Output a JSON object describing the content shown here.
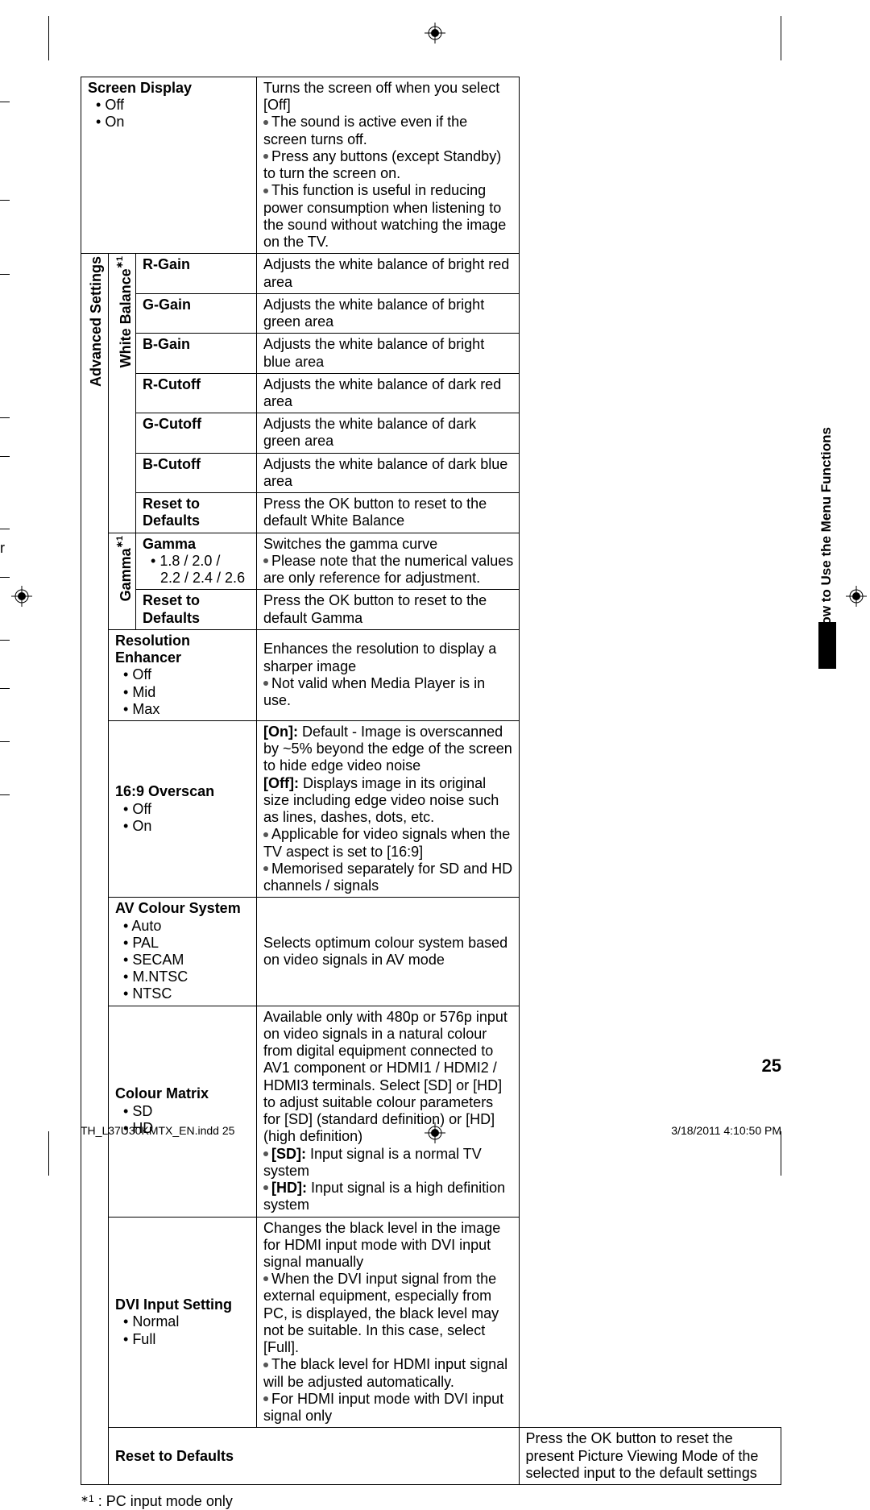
{
  "crop_color": "#000000",
  "partial_left_char": "r",
  "side_tab": "How to Use the Menu Functions",
  "footnote_mark": "∗1",
  "footnote_text": ": PC input mode only",
  "page_number": "25",
  "footer_left": "TH_L37U30KMTX_EN.indd   25",
  "footer_right": "3/18/2011   4:10:50 PM",
  "left_stub_positions": [
    26,
    148,
    240,
    418,
    466,
    556,
    616,
    694,
    754,
    820,
    886
  ],
  "rows": {
    "screen_display": {
      "label": "Screen Display",
      "options": [
        "Off",
        "On"
      ],
      "desc_lines": [
        {
          "text": "Turns the screen off when you select [Off]",
          "bullet": false
        },
        {
          "text": "The sound is active even if the screen turns off.",
          "bullet": true
        },
        {
          "text": "Press any buttons (except Standby) to turn the screen on.",
          "bullet": true
        },
        {
          "text": "This function is useful in reducing power consumption when listening to the sound without watching the image on the TV.",
          "bullet": true
        }
      ]
    },
    "adv_label": "Advanced Settings",
    "wb_label": "White Balance",
    "wb": [
      {
        "label": "R-Gain",
        "desc": "Adjusts the white balance of bright red area"
      },
      {
        "label": "G-Gain",
        "desc": "Adjusts the white balance of bright green area"
      },
      {
        "label": "B-Gain",
        "desc": "Adjusts the white balance of bright blue area"
      },
      {
        "label": "R-Cutoff",
        "desc": "Adjusts the white balance of dark red area"
      },
      {
        "label": "G-Cutoff",
        "desc": "Adjusts the white balance of dark green area"
      },
      {
        "label": "B-Cutoff",
        "desc": "Adjusts the white balance of dark blue area"
      },
      {
        "label": "Reset to Defaults",
        "desc": "Press the OK button to reset to the default White Balance"
      }
    ],
    "gamma_label": "Gamma",
    "gamma": {
      "label": "Gamma",
      "options_line1": "1.8 / 2.0 /",
      "options_line2": "2.2 / 2.4 / 2.6",
      "desc_lines": [
        {
          "text": "Switches the gamma curve",
          "bullet": false
        },
        {
          "text": "Please note that the numerical values are only reference for adjustment.",
          "bullet": true
        }
      ],
      "reset_label": "Reset to Defaults",
      "reset_desc": "Press the OK button to reset to the default Gamma"
    },
    "resolution": {
      "label": "Resolution Enhancer",
      "options": [
        "Off",
        "Mid",
        "Max"
      ],
      "desc_lines": [
        {
          "text": "Enhances the resolution to display a sharper image",
          "bullet": false
        },
        {
          "text": "Not valid when Media Player is in use.",
          "bullet": true
        }
      ]
    },
    "overscan": {
      "label": "16:9 Overscan",
      "options": [
        "Off",
        "On"
      ],
      "desc_lines": [
        {
          "pre": "[On]: ",
          "text": "Default - Image is overscanned by ~5% beyond the edge of the screen to hide edge video noise"
        },
        {
          "pre": "[Off]: ",
          "text": "Displays image in its original size including edge video noise such as lines, dashes, dots, etc."
        },
        {
          "bullet": true,
          "text": "Applicable for video signals when the TV aspect is set to [16:9]"
        },
        {
          "bullet": true,
          "text": "Memorised separately for SD and HD channels / signals"
        }
      ]
    },
    "avcolour": {
      "label": "AV Colour System",
      "options": [
        "Auto",
        "PAL",
        "SECAM",
        "M.NTSC",
        "NTSC"
      ],
      "desc": "Selects optimum colour system based on video signals in AV mode"
    },
    "colourmatrix": {
      "label": "Colour Matrix",
      "options": [
        "SD",
        "HD"
      ],
      "desc_lines": [
        {
          "text": "Available only with 480p or 576p input on video signals in a natural colour from digital equipment connected to AV1 component or HDMI1 / HDMI2 / HDMI3 terminals. Select [SD] or [HD] to adjust suitable colour parameters for [SD] (standard definition) or [HD] (high definition)"
        },
        {
          "bullet": true,
          "pre": "[SD]:",
          "text": " Input signal is a normal TV system"
        },
        {
          "bullet": true,
          "pre": "[HD]:",
          "text": " Input signal is a high definition system"
        }
      ]
    },
    "dvi": {
      "label": "DVI Input Setting",
      "options": [
        "Normal",
        "Full"
      ],
      "desc_lines": [
        {
          "text": "Changes the black level in the image for HDMI input mode with DVI input signal manually"
        },
        {
          "bullet": true,
          "text": "When the DVI input signal from the external equipment, especially from PC, is displayed, the black level may not be suitable. In this case, select [Full]."
        },
        {
          "bullet": true,
          "text": "The black level for HDMI input signal will be adjusted automatically."
        },
        {
          "bullet": true,
          "text": "For HDMI input mode with DVI input signal only"
        }
      ]
    },
    "reset": {
      "label": "Reset to Defaults",
      "desc": "Press the OK button to reset the present Picture Viewing Mode of the selected input to the default settings"
    }
  }
}
